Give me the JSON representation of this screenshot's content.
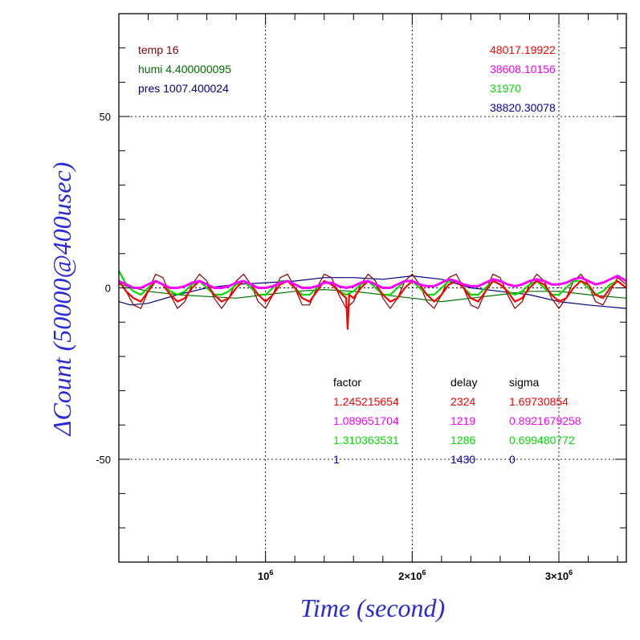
{
  "chart_data": {
    "type": "line",
    "xlabel": "Time (second)",
    "ylabel": "ΔCount (50000@400usec)",
    "xlim": [
      0,
      3460000
    ],
    "ylim": [
      -80,
      80
    ],
    "grid": true,
    "x_ticks": [
      {
        "value": 1000000,
        "mantissa": "",
        "base": "10",
        "exp": "6"
      },
      {
        "value": 2000000,
        "mantissa": "2×",
        "base": "10",
        "exp": "6"
      },
      {
        "value": 3000000,
        "mantissa": "3×",
        "base": "10",
        "exp": "6"
      }
    ],
    "y_ticks": [
      {
        "value": 50,
        "label": "50"
      },
      {
        "value": 0,
        "label": "0"
      },
      {
        "value": -50,
        "label": "-50"
      }
    ],
    "env_labels": [
      {
        "text": "temp 16",
        "color": "#8b0000"
      },
      {
        "text": "humi 4.400000095",
        "color": "#007000"
      },
      {
        "text": "pres 1007.400024",
        "color": "#000080"
      }
    ],
    "baselines": [
      {
        "text": "48017.19922",
        "color": "#ff0000"
      },
      {
        "text": "38608.10156",
        "color": "#ff00ff"
      },
      {
        "text": "31970",
        "color": "#00dd00"
      },
      {
        "text": "38820.30078",
        "color": "#0000b0"
      }
    ],
    "table": {
      "headers": [
        "factor",
        "delay",
        "sigma"
      ],
      "rows": [
        {
          "color": "#ff0000",
          "cells": [
            "1.245215654",
            "2324",
            "1.69730854"
          ]
        },
        {
          "color": "#ff00ff",
          "cells": [
            "1.089651704",
            "1219",
            "0.8921679258"
          ]
        },
        {
          "color": "#00dd00",
          "cells": [
            "1.310363531",
            "1286",
            "0.699480772"
          ]
        },
        {
          "color": "#0000b0",
          "cells": [
            "1",
            "1430",
            "0"
          ]
        }
      ]
    },
    "series": [
      {
        "color": "#000080",
        "width": 1.2,
        "x": [
          0,
          80000,
          200000,
          400000,
          600000,
          800000,
          1000000,
          1200000,
          1400000,
          1600000,
          1800000,
          2000000,
          2200000,
          2400000,
          2600000,
          2800000,
          3000000,
          3200000,
          3460000
        ],
        "y": [
          -4,
          -5,
          -4.5,
          -2,
          0,
          1,
          1.5,
          2,
          3,
          3,
          2.5,
          3.5,
          2.5,
          0,
          -1,
          -2,
          -4,
          -5,
          -6
        ]
      },
      {
        "color": "#8b0000",
        "width": 1.2,
        "x": [
          0,
          50000,
          100000,
          150000,
          200000,
          250000,
          300000,
          350000,
          400000,
          450000,
          500000,
          550000,
          600000,
          650000,
          700000,
          750000,
          800000,
          850000,
          900000,
          950000,
          1000000,
          1050000,
          1100000,
          1150000,
          1200000,
          1250000,
          1300000,
          1350000,
          1400000,
          1450000,
          1500000,
          1550000,
          1600000,
          1650000,
          1700000,
          1750000,
          1800000,
          1850000,
          1900000,
          1950000,
          2000000,
          2050000,
          2100000,
          2150000,
          2200000,
          2250000,
          2300000,
          2350000,
          2400000,
          2450000,
          2500000,
          2550000,
          2600000,
          2650000,
          2700000,
          2750000,
          2800000,
          2850000,
          2900000,
          2950000,
          3000000,
          3050000,
          3100000,
          3150000,
          3200000,
          3250000,
          3300000,
          3350000,
          3400000,
          3460000
        ],
        "y": [
          2,
          -1,
          -5,
          -6,
          -1,
          4,
          3,
          -2,
          -6,
          -4,
          1,
          4,
          2,
          -3,
          -6,
          -3,
          2,
          4,
          1,
          -4,
          -6,
          -2,
          3,
          4,
          0,
          -5,
          -5,
          0,
          4,
          3,
          -2,
          -6,
          -4,
          1,
          4,
          2,
          -3,
          -6,
          -3,
          2,
          4,
          1,
          -4,
          -6,
          -2,
          3,
          4,
          0,
          -5,
          -6,
          -1,
          4,
          3,
          -2,
          -6,
          -4,
          1,
          4,
          2,
          -3,
          -6,
          -3,
          2,
          4,
          1,
          -4,
          -5,
          -1,
          3,
          1
        ]
      },
      {
        "color": "#007000",
        "width": 1.2,
        "x": [
          0,
          200000,
          400000,
          600000,
          800000,
          1000000,
          1200000,
          1400000,
          1600000,
          1800000,
          2000000,
          2200000,
          2400000,
          2600000,
          2800000,
          3000000,
          3200000,
          3460000
        ],
        "y": [
          1,
          -1,
          -2,
          -2.5,
          -3,
          -2,
          -1,
          -0.5,
          -1,
          -2,
          -3,
          -4,
          -3,
          -2,
          -1,
          -1,
          -2,
          -3
        ]
      },
      {
        "color": "#00dd00",
        "width": 2.2,
        "x": [
          0,
          50000,
          100000,
          150000,
          200000,
          250000,
          300000,
          350000,
          400000,
          450000,
          500000,
          550000,
          600000,
          650000,
          700000,
          750000,
          800000,
          850000,
          900000,
          950000,
          1000000,
          1050000,
          1100000,
          1150000,
          1200000,
          1250000,
          1300000,
          1350000,
          1400000,
          1450000,
          1500000,
          1550000,
          1600000,
          1650000,
          1700000,
          1750000,
          1800000,
          1850000,
          1900000,
          1950000,
          2000000,
          2050000,
          2100000,
          2150000,
          2200000,
          2250000,
          2300000,
          2350000,
          2400000,
          2450000,
          2500000,
          2550000,
          2600000,
          2650000,
          2700000,
          2750000,
          2800000,
          2850000,
          2900000,
          2950000,
          3000000,
          3050000,
          3100000,
          3150000,
          3200000,
          3250000,
          3300000,
          3350000,
          3400000,
          3460000
        ],
        "y": [
          5,
          1,
          -1,
          -2,
          0,
          2,
          1,
          -1,
          -2,
          -1,
          1,
          2,
          0,
          -2,
          -2,
          -1,
          1,
          2,
          0,
          -2,
          -2,
          0,
          2,
          2,
          0,
          -2,
          -2,
          0,
          2,
          1,
          -1,
          -2,
          -1,
          1,
          2,
          0,
          -2,
          -2,
          0,
          2,
          2,
          0,
          -2,
          -2,
          0,
          2,
          2,
          0,
          -2,
          -2,
          0,
          2,
          1,
          -1,
          -2,
          -1,
          1,
          2,
          0,
          -2,
          -2,
          0,
          2,
          2,
          0,
          -2,
          -1,
          1,
          2,
          0
        ]
      },
      {
        "color": "#ff0000",
        "width": 2.2,
        "x": [
          0,
          50000,
          100000,
          150000,
          200000,
          250000,
          300000,
          350000,
          400000,
          450000,
          500000,
          550000,
          600000,
          650000,
          700000,
          750000,
          800000,
          850000,
          900000,
          950000,
          1000000,
          1050000,
          1100000,
          1150000,
          1200000,
          1250000,
          1300000,
          1350000,
          1400000,
          1450000,
          1500000,
          1550000,
          1560000,
          1570000,
          1600000,
          1650000,
          1700000,
          1750000,
          1800000,
          1850000,
          1900000,
          1950000,
          2000000,
          2050000,
          2100000,
          2150000,
          2200000,
          2250000,
          2300000,
          2350000,
          2400000,
          2450000,
          2500000,
          2550000,
          2600000,
          2650000,
          2700000,
          2750000,
          2800000,
          2850000,
          2900000,
          2950000,
          3000000,
          3050000,
          3100000,
          3150000,
          3200000,
          3250000,
          3300000,
          3350000,
          3400000,
          3460000
        ],
        "y": [
          2,
          -1,
          -3,
          -4,
          -1,
          2,
          1,
          -2,
          -4,
          -3,
          0,
          2,
          1,
          -2,
          -4,
          -3,
          0,
          2,
          1,
          -2,
          -4,
          -2,
          1,
          2,
          0,
          -3,
          -4,
          -1,
          2,
          1,
          -1,
          -3,
          -12,
          -2,
          -3,
          0,
          2,
          1,
          -2,
          -4,
          -3,
          0,
          2,
          1,
          -2,
          -4,
          -2,
          1,
          2,
          0,
          -3,
          -4,
          -1,
          2,
          1,
          -1,
          -4,
          -3,
          0,
          2,
          1,
          -2,
          -4,
          -3,
          0,
          2,
          1,
          -2,
          -3,
          0,
          2,
          0
        ]
      },
      {
        "color": "#ff00ff",
        "width": 3,
        "x": [
          0,
          50000,
          100000,
          150000,
          200000,
          250000,
          300000,
          350000,
          400000,
          450000,
          500000,
          550000,
          600000,
          650000,
          700000,
          750000,
          800000,
          850000,
          900000,
          950000,
          1000000,
          1050000,
          1100000,
          1150000,
          1200000,
          1250000,
          1300000,
          1350000,
          1400000,
          1450000,
          1500000,
          1550000,
          1600000,
          1650000,
          1700000,
          1750000,
          1800000,
          1850000,
          1900000,
          1950000,
          2000000,
          2050000,
          2100000,
          2150000,
          2200000,
          2250000,
          2300000,
          2350000,
          2400000,
          2450000,
          2500000,
          2550000,
          2600000,
          2650000,
          2700000,
          2750000,
          2800000,
          2850000,
          2900000,
          2950000,
          3000000,
          3050000,
          3100000,
          3150000,
          3200000,
          3250000,
          3300000,
          3350000,
          3400000,
          3460000
        ],
        "y": [
          2,
          1,
          0,
          0,
          1,
          2,
          1,
          0,
          0,
          0.5,
          1.5,
          2,
          1,
          0,
          0,
          0.5,
          1.5,
          2,
          1,
          0,
          0,
          0.5,
          1.5,
          2,
          1,
          0,
          0,
          0.5,
          1.5,
          1.5,
          0.5,
          0,
          0.5,
          1.5,
          2,
          1,
          0,
          0,
          1,
          2,
          2,
          1,
          0.5,
          0.5,
          1.5,
          2.5,
          2,
          1,
          0.5,
          0.5,
          1.5,
          2.5,
          2,
          1,
          0.5,
          1,
          2,
          2.5,
          2,
          1,
          1,
          1.5,
          2.5,
          3,
          2,
          1,
          1.5,
          2.5,
          3.5,
          2
        ]
      }
    ]
  }
}
